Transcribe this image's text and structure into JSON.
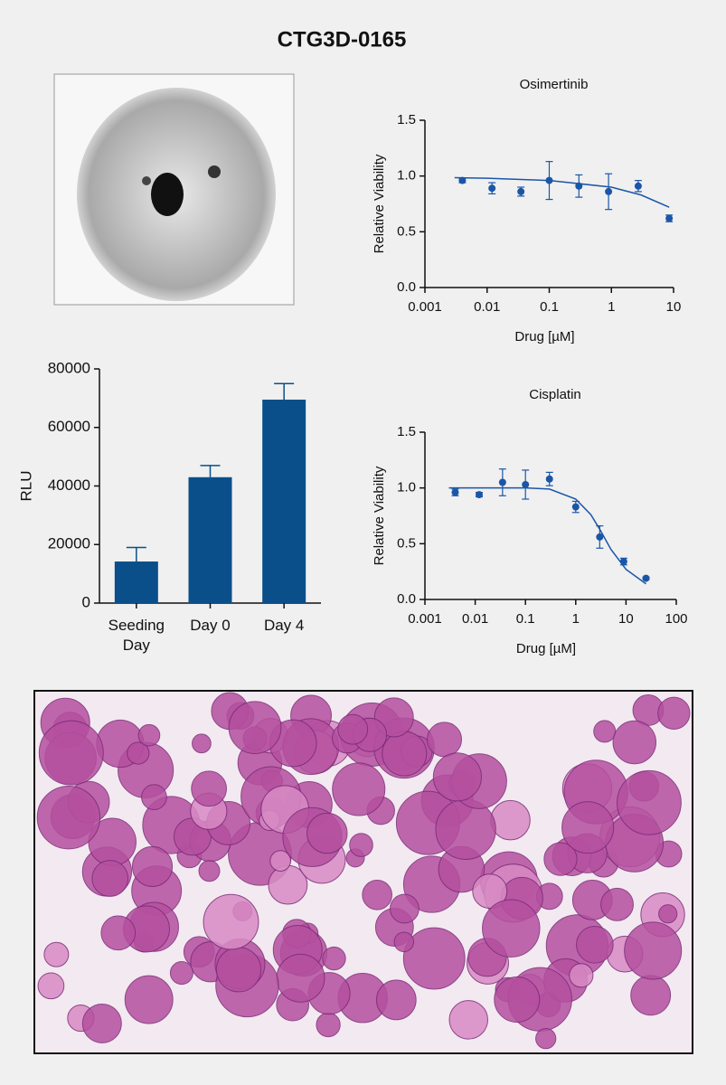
{
  "title": "CTG3D-0165",
  "chart_data": [
    {
      "type": "bar",
      "ylabel": "RLU",
      "categories": [
        "Seeding Day",
        "Day 0",
        "Day 4"
      ],
      "values": [
        14200,
        43000,
        69500
      ],
      "errors": [
        4800,
        4000,
        5500
      ],
      "color": "#0a4f8a",
      "ylim": [
        0,
        80000
      ],
      "yticks": [
        0,
        20000,
        40000,
        60000,
        80000
      ]
    },
    {
      "type": "scatter",
      "title": "Osimertinib",
      "xlabel": "Drug [µM]",
      "ylabel": "Relative Viability",
      "xscale": "log",
      "xlim": [
        0.001,
        10
      ],
      "xticks": [
        0.001,
        0.01,
        0.1,
        1,
        10
      ],
      "ylim": [
        0,
        1.5
      ],
      "yticks": [
        {
          "value": 0,
          "label": "0.0"
        },
        0.5,
        {
          "value": 1,
          "label": "1.0"
        },
        1.5
      ],
      "color": "#1a56a8",
      "x": [
        0.004,
        0.012,
        0.035,
        0.1,
        0.3,
        0.9,
        2.7,
        8.5
      ],
      "values": [
        0.96,
        0.89,
        0.86,
        0.96,
        0.91,
        0.86,
        0.91,
        0.62
      ],
      "errors": [
        0.02,
        0.05,
        0.04,
        0.17,
        0.1,
        0.16,
        0.05,
        0.03
      ],
      "fit": {
        "x": [
          0.003,
          0.01,
          0.1,
          1,
          3,
          8.5
        ],
        "values": [
          0.985,
          0.98,
          0.96,
          0.9,
          0.83,
          0.72
        ]
      }
    },
    {
      "type": "scatter",
      "title": "Cisplatin",
      "xlabel": "Drug [µM]",
      "ylabel": "Relative Viability",
      "xscale": "log",
      "xlim": [
        0.001,
        100
      ],
      "xticks": [
        0.001,
        0.01,
        0.1,
        1,
        10,
        100
      ],
      "ylim": [
        0,
        1.5
      ],
      "yticks": [
        {
          "value": 0,
          "label": "0.0"
        },
        0.5,
        {
          "value": 1,
          "label": "1.0"
        },
        1.5
      ],
      "color": "#1a56a8",
      "x": [
        0.004,
        0.012,
        0.035,
        0.1,
        0.3,
        1,
        3,
        9,
        25
      ],
      "values": [
        0.96,
        0.94,
        1.05,
        1.03,
        1.08,
        0.83,
        0.56,
        0.34,
        0.19
      ],
      "errors": [
        0.03,
        0.02,
        0.12,
        0.13,
        0.06,
        0.05,
        0.1,
        0.03,
        0.01
      ],
      "fit": {
        "x": [
          0.003,
          0.01,
          0.1,
          0.3,
          1,
          2,
          3,
          5,
          10,
          25
        ],
        "values": [
          1.0,
          1.0,
          1.0,
          0.99,
          0.9,
          0.76,
          0.63,
          0.45,
          0.27,
          0.14
        ]
      }
    }
  ]
}
